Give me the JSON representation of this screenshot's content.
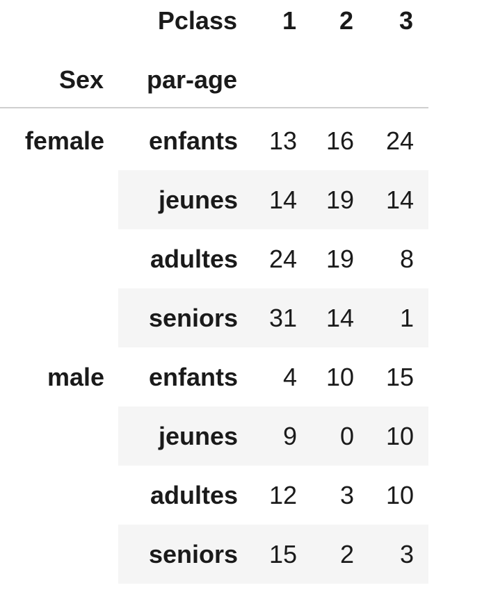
{
  "header": {
    "columns_label": "Pclass",
    "columns": [
      "1",
      "2",
      "3"
    ],
    "index_labels": [
      "Sex",
      "par-age"
    ]
  },
  "rows": [
    {
      "sex": "female",
      "age": "enfants",
      "values": [
        "13",
        "16",
        "24"
      ]
    },
    {
      "sex": "",
      "age": "jeunes",
      "values": [
        "14",
        "19",
        "14"
      ]
    },
    {
      "sex": "",
      "age": "adultes",
      "values": [
        "24",
        "19",
        "8"
      ]
    },
    {
      "sex": "",
      "age": "seniors",
      "values": [
        "31",
        "14",
        "1"
      ]
    },
    {
      "sex": "male",
      "age": "enfants",
      "values": [
        "4",
        "10",
        "15"
      ]
    },
    {
      "sex": "",
      "age": "jeunes",
      "values": [
        "9",
        "0",
        "10"
      ]
    },
    {
      "sex": "",
      "age": "adultes",
      "values": [
        "12",
        "3",
        "10"
      ]
    },
    {
      "sex": "",
      "age": "seniors",
      "values": [
        "15",
        "2",
        "3"
      ]
    }
  ]
}
